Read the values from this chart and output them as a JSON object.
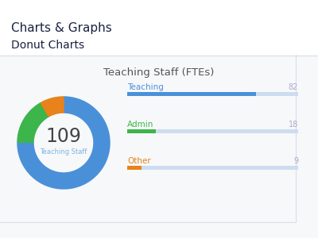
{
  "title": "Teaching Staff (FTEs)",
  "header1": "Charts & Graphs",
  "header2": "Donut Charts",
  "center_number": "109",
  "center_label": "Teaching Staff",
  "donut_values": [
    82,
    18,
    9
  ],
  "donut_colors": [
    "#4a90d9",
    "#3cb54a",
    "#e8821a"
  ],
  "donut_bg_color": "#d6e8f7",
  "categories": [
    "Teaching",
    "Admin",
    "Other"
  ],
  "cat_colors": [
    "#4a90d9",
    "#3cb54a",
    "#e8821a"
  ],
  "values": [
    82,
    18,
    9
  ],
  "total": 109,
  "bar_bg_color": "#ccddf0",
  "bg_color": "#ffffff",
  "panel_bg": "#f7f8fa",
  "divider_color": "#d8dde6",
  "header_color": "#1a2340",
  "subheader_color": "#1a2340",
  "title_color": "#555555",
  "number_color": "#444444",
  "center_label_color": "#7ab4e0",
  "value_label_color": "#aaaacc"
}
